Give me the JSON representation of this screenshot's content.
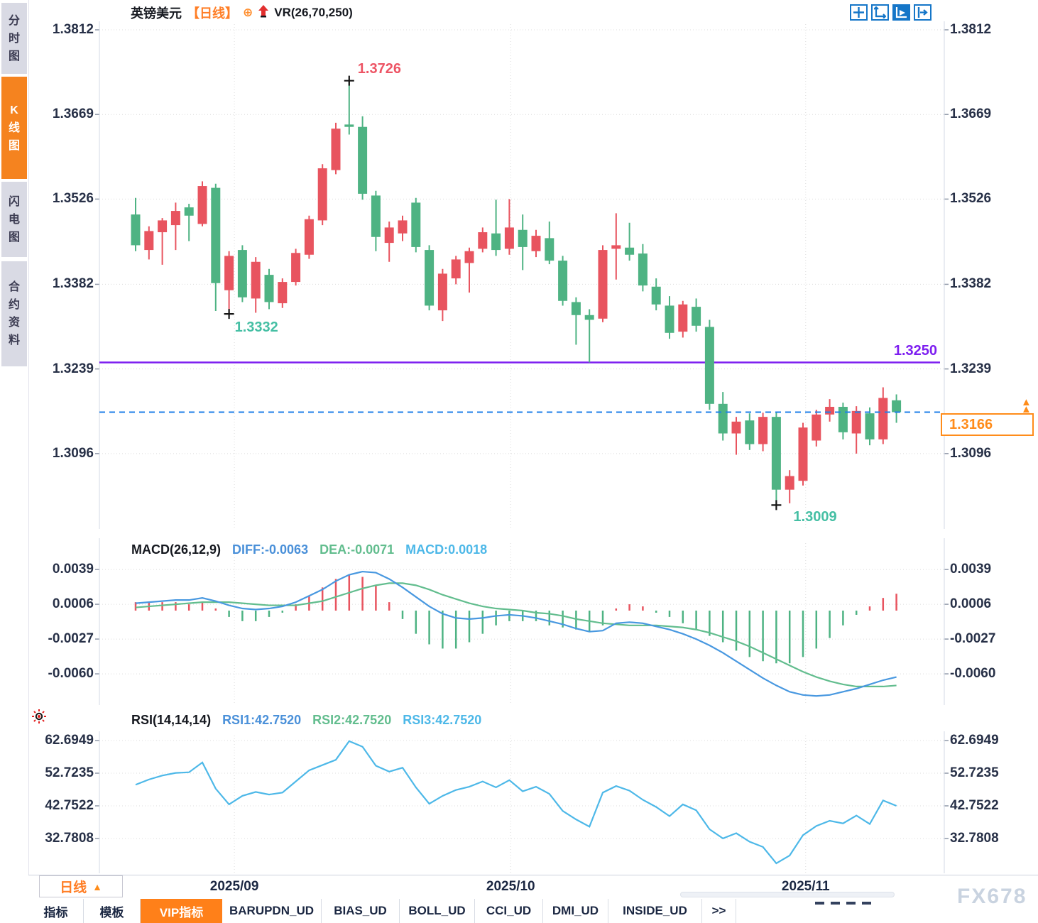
{
  "sidebar": {
    "tabs": [
      {
        "label": "分时图",
        "active": false
      },
      {
        "label": "K线图",
        "active": true
      },
      {
        "label": "闪电图",
        "active": false
      },
      {
        "label": "合约资料",
        "active": false
      }
    ]
  },
  "header": {
    "symbol": "英镑美元",
    "period_tag": "【日线】",
    "indicator": "VR(26,70,250)"
  },
  "toolbar": {
    "icons": [
      "crosshair-move-icon",
      "axis-scale-icon",
      "pointer-play-icon",
      "pan-right-icon"
    ],
    "active_icon": "pointer-play-icon"
  },
  "macd_pane": {
    "title": "MACD(26,12,9)",
    "diff_label": "DIFF:-0.0063",
    "dea_label": "DEA:-0.0071",
    "macd_label": "MACD:0.0018"
  },
  "rsi_pane": {
    "title": "RSI(14,14,14)",
    "rsi1_label": "RSI1:42.7520",
    "rsi2_label": "RSI2:42.7520",
    "rsi3_label": "RSI3:42.7520"
  },
  "period_button": {
    "label": "日线",
    "arrow": "▲"
  },
  "bottom_tabs": [
    {
      "label": "指标",
      "active": false
    },
    {
      "label": "模板",
      "active": false
    },
    {
      "label": "VIP指标",
      "active": true
    },
    {
      "label": "BARUPDN_UD",
      "active": false
    },
    {
      "label": "BIAS_UD",
      "active": false
    },
    {
      "label": "BOLL_UD",
      "active": false
    },
    {
      "label": "CCI_UD",
      "active": false
    },
    {
      "label": "DMI_UD",
      "active": false
    },
    {
      "label": "INSIDE_UD",
      "active": false
    },
    {
      "label": ">>",
      "active": false
    }
  ],
  "watermark": "FX678",
  "colors": {
    "up": "#e8545f",
    "down": "#4eb383",
    "diff_line": "#4898e0",
    "dea_line": "#62bd8e",
    "rsi_line": "#4db8e8",
    "hline_purple": "#7d1ef0",
    "last_price_blue": "#1f7fe8",
    "accent_orange": "#ff8019",
    "grid": "#dcdcdc"
  },
  "chart_data": [
    {
      "type": "candlestick",
      "title": "英镑美元 日线",
      "y_ticks": [
        1.3812,
        1.3669,
        1.3526,
        1.3382,
        1.3239,
        1.3096
      ],
      "x_month_ticks": [
        {
          "label": "2025/09",
          "index": 7.4
        },
        {
          "label": "2025/10",
          "index": 28.1
        },
        {
          "label": "2025/11",
          "index": 50.2
        }
      ],
      "annotations": {
        "high": {
          "index": 16,
          "price": 1.3726,
          "label": "1.3726"
        },
        "low1": {
          "index": 7,
          "price": 1.3332,
          "label": "1.3332"
        },
        "low2": {
          "index": 48,
          "price": 1.3009,
          "label": "1.3009"
        },
        "hline": {
          "price": 1.325,
          "label": "1.3250"
        },
        "last": {
          "price": 1.3166,
          "label": "1.3166"
        }
      },
      "ohlc": [
        [
          1.35,
          1.3528,
          1.3438,
          1.3448
        ],
        [
          1.344,
          1.348,
          1.3424,
          1.3472
        ],
        [
          1.347,
          1.3494,
          1.3415,
          1.349
        ],
        [
          1.3482,
          1.352,
          1.344,
          1.3506
        ],
        [
          1.3512,
          1.3518,
          1.3455,
          1.3498
        ],
        [
          1.3484,
          1.3556,
          1.348,
          1.3548
        ],
        [
          1.3545,
          1.3552,
          1.3337,
          1.3384
        ],
        [
          1.3372,
          1.3438,
          1.3332,
          1.343
        ],
        [
          1.344,
          1.3448,
          1.3352,
          1.336
        ],
        [
          1.3358,
          1.3428,
          1.3334,
          1.342
        ],
        [
          1.3398,
          1.3408,
          1.334,
          1.3352
        ],
        [
          1.335,
          1.3392,
          1.3342,
          1.3386
        ],
        [
          1.3386,
          1.3442,
          1.338,
          1.3435
        ],
        [
          1.3432,
          1.3498,
          1.3425,
          1.3492
        ],
        [
          1.349,
          1.3585,
          1.3482,
          1.3578
        ],
        [
          1.3575,
          1.3655,
          1.3568,
          1.3645
        ],
        [
          1.3652,
          1.3726,
          1.3635,
          1.3648
        ],
        [
          1.3648,
          1.3666,
          1.3525,
          1.3535
        ],
        [
          1.3532,
          1.354,
          1.3438,
          1.3462
        ],
        [
          1.3452,
          1.3488,
          1.342,
          1.3478
        ],
        [
          1.3468,
          1.3498,
          1.3455,
          1.349
        ],
        [
          1.352,
          1.3528,
          1.3436,
          1.3445
        ],
        [
          1.344,
          1.3448,
          1.3338,
          1.3346
        ],
        [
          1.3338,
          1.3408,
          1.332,
          1.34
        ],
        [
          1.3392,
          1.343,
          1.3382,
          1.3424
        ],
        [
          1.3418,
          1.3444,
          1.3368,
          1.3438
        ],
        [
          1.3442,
          1.3478,
          1.3436,
          1.347
        ],
        [
          1.3468,
          1.3525,
          1.343,
          1.344
        ],
        [
          1.3442,
          1.3526,
          1.3432,
          1.3478
        ],
        [
          1.3474,
          1.35,
          1.3406,
          1.3445
        ],
        [
          1.3438,
          1.3474,
          1.3428,
          1.3464
        ],
        [
          1.346,
          1.3488,
          1.3416,
          1.3422
        ],
        [
          1.3422,
          1.343,
          1.3346,
          1.3354
        ],
        [
          1.3352,
          1.336,
          1.328,
          1.333
        ],
        [
          1.333,
          1.334,
          1.325,
          1.3322
        ],
        [
          1.3324,
          1.3448,
          1.3318,
          1.344
        ],
        [
          1.3442,
          1.3502,
          1.339,
          1.3448
        ],
        [
          1.3444,
          1.3486,
          1.3422,
          1.3432
        ],
        [
          1.3434,
          1.345,
          1.337,
          1.338
        ],
        [
          1.3378,
          1.3392,
          1.3338,
          1.3348
        ],
        [
          1.3346,
          1.3362,
          1.329,
          1.33
        ],
        [
          1.3302,
          1.3354,
          1.3292,
          1.3348
        ],
        [
          1.3344,
          1.3358,
          1.3302,
          1.3312
        ],
        [
          1.331,
          1.3322,
          1.317,
          1.318
        ],
        [
          1.318,
          1.32,
          1.3118,
          1.313
        ],
        [
          1.313,
          1.3158,
          1.3094,
          1.315
        ],
        [
          1.3152,
          1.3164,
          1.3102,
          1.3112
        ],
        [
          1.3112,
          1.3165,
          1.31,
          1.3158
        ],
        [
          1.3158,
          1.3165,
          1.3009,
          1.3035
        ],
        [
          1.3035,
          1.3068,
          1.3012,
          1.3058
        ],
        [
          1.305,
          1.3148,
          1.3042,
          1.314
        ],
        [
          1.3118,
          1.317,
          1.3108,
          1.3162
        ],
        [
          1.3162,
          1.3188,
          1.315,
          1.3175
        ],
        [
          1.3175,
          1.3182,
          1.312,
          1.3132
        ],
        [
          1.313,
          1.3176,
          1.3096,
          1.3168
        ],
        [
          1.3164,
          1.3174,
          1.311,
          1.312
        ],
        [
          1.312,
          1.3208,
          1.3112,
          1.319
        ],
        [
          1.3186,
          1.3196,
          1.3148,
          1.3166
        ]
      ]
    },
    {
      "type": "macd",
      "params": "(26,12,9)",
      "y_ticks": [
        0.0039,
        0.0006,
        -0.0027,
        -0.006
      ],
      "diff": [
        0.0007,
        0.0008,
        0.0009,
        0.001,
        0.001,
        0.0012,
        0.0009,
        0.0005,
        0.0002,
        0.0001,
        0.0002,
        0.0004,
        0.0008,
        0.0014,
        0.002,
        0.0028,
        0.0034,
        0.0037,
        0.0036,
        0.003,
        0.0022,
        0.0013,
        0.0004,
        -0.0003,
        -0.0007,
        -0.0008,
        -0.0007,
        -0.0005,
        -0.0004,
        -0.0005,
        -0.0007,
        -0.001,
        -0.0013,
        -0.0017,
        -0.002,
        -0.0019,
        -0.0012,
        -0.0011,
        -0.0012,
        -0.0015,
        -0.0018,
        -0.0022,
        -0.0027,
        -0.0033,
        -0.004,
        -0.0048,
        -0.0056,
        -0.0064,
        -0.0071,
        -0.0077,
        -0.008,
        -0.0081,
        -0.008,
        -0.0077,
        -0.0074,
        -0.007,
        -0.0066,
        -0.0063
      ],
      "dea": [
        0.0003,
        0.0004,
        0.0005,
        0.0006,
        0.0007,
        0.0008,
        0.0008,
        0.0008,
        0.0007,
        0.0006,
        0.0005,
        0.0005,
        0.0005,
        0.0007,
        0.0009,
        0.0013,
        0.0017,
        0.0021,
        0.0024,
        0.0026,
        0.0026,
        0.0024,
        0.002,
        0.0015,
        0.0011,
        0.0007,
        0.0004,
        0.0002,
        0.0001,
        0.0,
        -0.0002,
        -0.0003,
        -0.0005,
        -0.0008,
        -0.001,
        -0.0012,
        -0.0013,
        -0.0014,
        -0.0014,
        -0.0014,
        -0.0015,
        -0.0016,
        -0.0018,
        -0.0021,
        -0.0025,
        -0.0029,
        -0.0034,
        -0.004,
        -0.0046,
        -0.0052,
        -0.0058,
        -0.0063,
        -0.0067,
        -0.007,
        -0.0072,
        -0.0072,
        -0.0072,
        -0.0071
      ]
    },
    {
      "type": "line",
      "name": "RSI",
      "params": "(14,14,14)",
      "y_ticks": [
        62.6949,
        52.7235,
        42.7522,
        32.7808
      ],
      "rsi": [
        49.2,
        50.8,
        52.0,
        52.8,
        53.0,
        56.0,
        48.0,
        43.2,
        45.8,
        47.0,
        46.2,
        46.8,
        50.2,
        53.6,
        55.2,
        56.8,
        62.5,
        60.8,
        55.0,
        53.2,
        54.4,
        48.4,
        43.4,
        45.8,
        47.6,
        48.6,
        50.2,
        48.4,
        50.6,
        47.2,
        48.6,
        46.4,
        41.2,
        38.6,
        36.4,
        46.8,
        48.8,
        47.4,
        44.6,
        42.4,
        39.6,
        43.2,
        41.4,
        35.6,
        32.8,
        34.4,
        31.8,
        30.2,
        25.2,
        27.6,
        33.8,
        36.6,
        38.2,
        37.4,
        39.8,
        37.2,
        44.4,
        42.752
      ]
    }
  ]
}
